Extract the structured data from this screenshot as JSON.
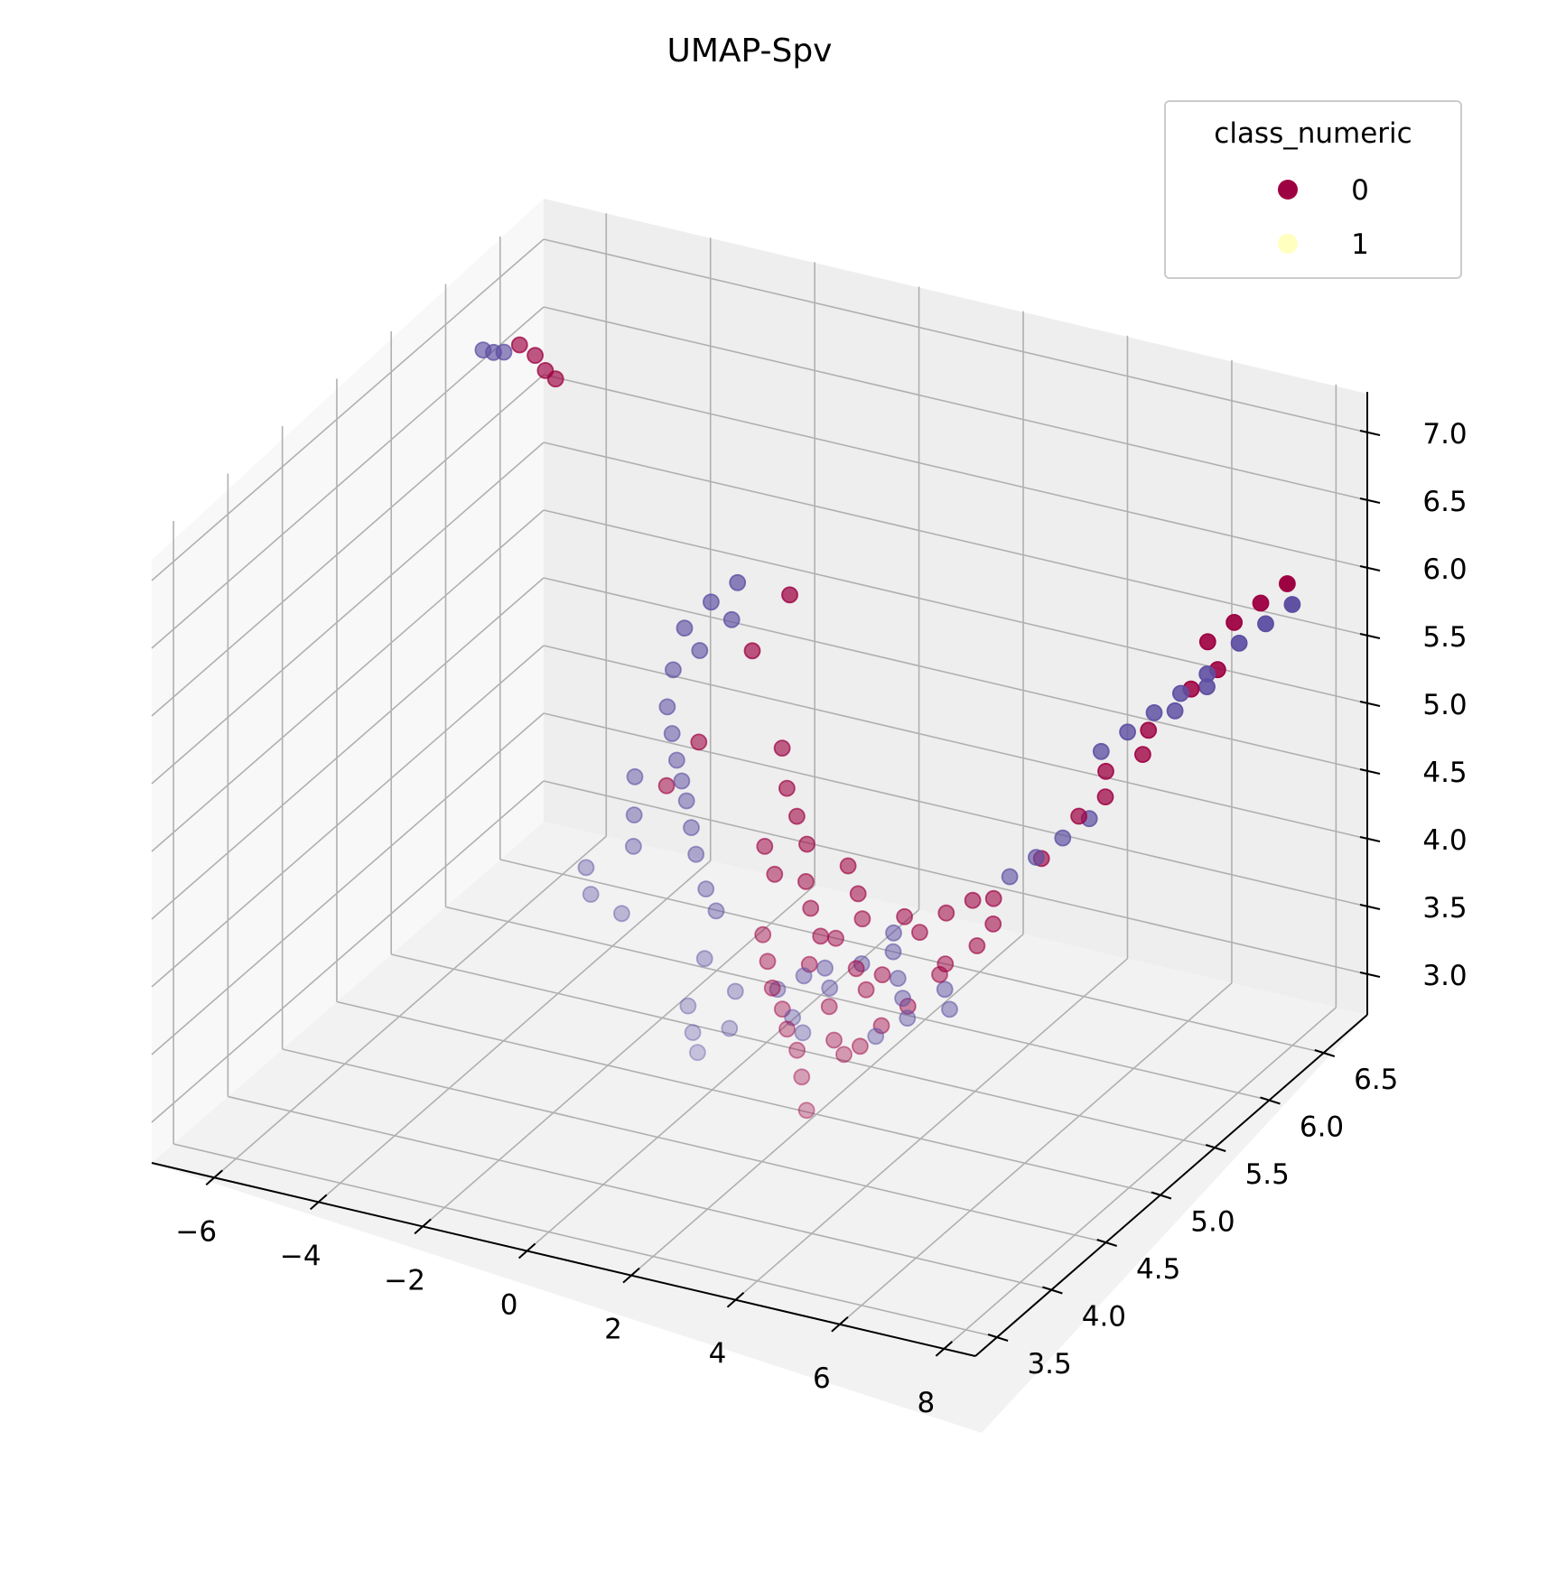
{
  "chart_data": {
    "type": "scatter",
    "title": "UMAP-Spv",
    "xlabel": "",
    "ylabel": "",
    "zlabel": "",
    "x_ticks": [
      "−6",
      "−4",
      "−2",
      "0",
      "2",
      "4",
      "6",
      "8"
    ],
    "y_ticks": [
      "3.5",
      "4.0",
      "4.5",
      "5.0",
      "5.5",
      "6.0",
      "6.5"
    ],
    "z_ticks": [
      "3.0",
      "3.5",
      "4.0",
      "4.5",
      "5.0",
      "5.5",
      "6.0",
      "6.5",
      "7.0"
    ],
    "grid": true,
    "colors": {
      "class_0": "#9e0142",
      "class_1": "#5e4fa2",
      "legend_class_1": "#ffffbf"
    },
    "legend": {
      "title": "class_numeric",
      "placement": "top-right",
      "entries": [
        {
          "label": "0",
          "color": "#9e0142"
        },
        {
          "label": "1",
          "color": "#ffffbf"
        }
      ]
    },
    "series": [
      {
        "name": "0",
        "points": [
          [
            -6.2,
            6.2,
            6.8
          ],
          [
            -5.9,
            6.2,
            6.75
          ],
          [
            -5.6,
            6.15,
            6.7
          ],
          [
            -5.3,
            6.1,
            6.7
          ],
          [
            -0.6,
            6.0,
            5.6
          ],
          [
            -0.9,
            5.8,
            5.3
          ],
          [
            -1.3,
            5.5,
            4.8
          ],
          [
            -1.5,
            5.3,
            4.6
          ],
          [
            0.3,
            5.5,
            4.9
          ],
          [
            0.6,
            5.4,
            4.7
          ],
          [
            1.0,
            5.3,
            4.6
          ],
          [
            1.4,
            5.2,
            4.5
          ],
          [
            1.8,
            5.0,
            4.4
          ],
          [
            2.1,
            4.9,
            4.3
          ],
          [
            2.5,
            4.8,
            4.2
          ],
          [
            2.8,
            5.0,
            4.4
          ],
          [
            1.6,
            4.7,
            4.2
          ],
          [
            1.9,
            4.6,
            4.1
          ],
          [
            2.2,
            4.5,
            4.0
          ],
          [
            2.6,
            4.4,
            3.95
          ],
          [
            3.0,
            4.7,
            4.3
          ],
          [
            3.3,
            4.8,
            4.4
          ],
          [
            3.6,
            4.6,
            4.2
          ],
          [
            3.9,
            4.9,
            4.4
          ],
          [
            2.9,
            4.3,
            3.9
          ],
          [
            3.3,
            4.2,
            3.85
          ],
          [
            3.6,
            4.1,
            3.75
          ],
          [
            3.8,
            4.3,
            3.9
          ],
          [
            4.1,
            4.6,
            4.2
          ],
          [
            4.4,
            4.8,
            4.4
          ],
          [
            4.7,
            4.9,
            4.5
          ],
          [
            5.0,
            5.0,
            4.55
          ],
          [
            4.2,
            4.2,
            3.9
          ],
          [
            4.5,
            4.4,
            4.0
          ],
          [
            4.8,
            4.5,
            4.1
          ],
          [
            5.1,
            4.7,
            4.3
          ],
          [
            3.9,
            4.0,
            3.6
          ],
          [
            4.3,
            4.3,
            3.9
          ],
          [
            5.4,
            5.0,
            4.6
          ],
          [
            5.6,
            4.9,
            4.5
          ],
          [
            5.9,
            5.2,
            4.8
          ],
          [
            6.2,
            5.4,
            5.0
          ],
          [
            6.5,
            5.5,
            5.1
          ],
          [
            6.8,
            5.7,
            5.3
          ],
          [
            6.3,
            5.6,
            5.2
          ],
          [
            6.7,
            5.8,
            5.4
          ],
          [
            7.1,
            6.0,
            5.6
          ],
          [
            7.4,
            6.1,
            5.7
          ],
          [
            7.0,
            6.2,
            5.8
          ],
          [
            7.3,
            6.3,
            5.9
          ],
          [
            7.6,
            6.4,
            6.0
          ],
          [
            7.9,
            6.5,
            6.1
          ],
          [
            5.2,
            4.6,
            4.3
          ],
          [
            5.5,
            4.8,
            4.4
          ],
          [
            4.0,
            4.5,
            4.15
          ],
          [
            3.5,
            4.4,
            4.05
          ],
          [
            2.4,
            5.1,
            4.5
          ],
          [
            1.2,
            5.0,
            4.4
          ],
          [
            0.8,
            5.1,
            4.5
          ],
          [
            2.7,
            4.6,
            4.15
          ]
        ]
      },
      {
        "name": "1",
        "points": [
          [
            -6.9,
            6.2,
            6.7
          ],
          [
            -6.7,
            6.2,
            6.7
          ],
          [
            -6.5,
            6.2,
            6.72
          ],
          [
            -1.6,
            6.0,
            5.6
          ],
          [
            -1.9,
            5.9,
            5.5
          ],
          [
            -2.2,
            5.8,
            5.35
          ],
          [
            -1.4,
            5.85,
            5.45
          ],
          [
            -1.7,
            5.7,
            5.3
          ],
          [
            -2.0,
            5.6,
            5.2
          ],
          [
            -1.8,
            5.45,
            5.05
          ],
          [
            -1.5,
            5.35,
            4.95
          ],
          [
            -1.2,
            5.25,
            4.85
          ],
          [
            -1.0,
            5.2,
            4.75
          ],
          [
            -0.7,
            5.1,
            4.7
          ],
          [
            -1.9,
            5.2,
            4.7
          ],
          [
            -1.6,
            5.05,
            4.55
          ],
          [
            -1.3,
            4.9,
            4.45
          ],
          [
            -2.0,
            4.8,
            4.3
          ],
          [
            -1.7,
            4.7,
            4.2
          ],
          [
            -0.4,
            5.0,
            4.6
          ],
          [
            -0.1,
            4.9,
            4.5
          ],
          [
            0.3,
            4.8,
            4.35
          ],
          [
            0.6,
            4.75,
            4.25
          ],
          [
            1.0,
            4.3,
            3.9
          ],
          [
            1.3,
            4.2,
            3.8
          ],
          [
            1.6,
            4.1,
            3.75
          ],
          [
            1.9,
            4.25,
            3.85
          ],
          [
            2.3,
            4.5,
            4.0
          ],
          [
            2.7,
            4.55,
            4.1
          ],
          [
            3.0,
            4.6,
            4.15
          ],
          [
            3.3,
            4.5,
            4.1
          ],
          [
            3.6,
            4.65,
            4.2
          ],
          [
            3.9,
            4.8,
            4.35
          ],
          [
            4.1,
            4.7,
            4.3
          ],
          [
            4.4,
            4.6,
            4.2
          ],
          [
            4.7,
            4.5,
            4.15
          ],
          [
            5.0,
            4.4,
            4.1
          ],
          [
            5.3,
            4.6,
            4.2
          ],
          [
            5.6,
            4.5,
            4.15
          ],
          [
            5.5,
            5.1,
            4.7
          ],
          [
            5.8,
            5.2,
            4.8
          ],
          [
            6.1,
            5.3,
            4.9
          ],
          [
            6.4,
            5.4,
            5.0
          ],
          [
            6.0,
            5.7,
            5.25
          ],
          [
            6.3,
            5.8,
            5.35
          ],
          [
            6.6,
            5.9,
            5.45
          ],
          [
            6.9,
            6.0,
            5.55
          ],
          [
            7.2,
            6.1,
            5.65
          ],
          [
            7.5,
            6.25,
            5.8
          ],
          [
            7.8,
            6.35,
            5.9
          ],
          [
            8.1,
            6.45,
            6.0
          ],
          [
            7.0,
            5.9,
            5.5
          ],
          [
            7.3,
            6.05,
            5.6
          ],
          [
            2.9,
            4.35,
            3.95
          ],
          [
            3.2,
            4.3,
            3.9
          ],
          [
            4.6,
            4.3,
            4.0
          ],
          [
            -0.9,
            4.6,
            4.2
          ],
          [
            0.9,
            4.5,
            4.1
          ],
          [
            1.7,
            4.4,
            4.0
          ]
        ]
      }
    ]
  }
}
